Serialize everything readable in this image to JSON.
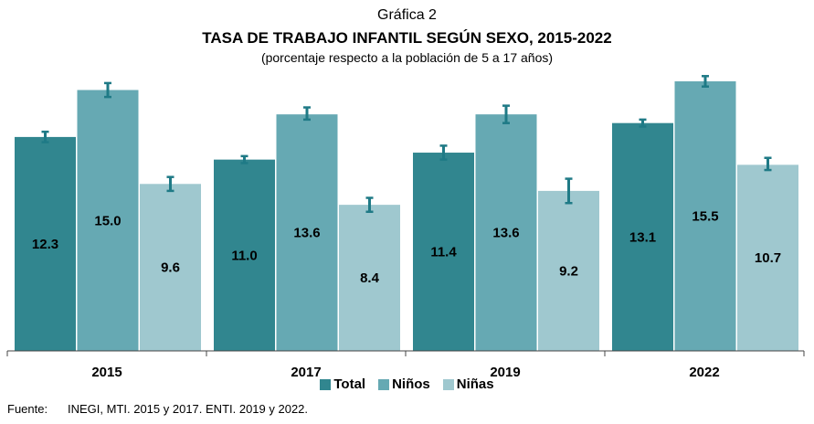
{
  "header": {
    "label": "Gráfica 2",
    "title": "TASA DE TRABAJO INFANTIL SEGÚN SEXO, 2015-2022",
    "subtitle": "(porcentaje respecto a la población de 5 a 17 años)"
  },
  "chart_data": {
    "type": "bar",
    "title": "TASA DE TRABAJO INFANTIL SEGÚN SEXO, 2015-2022",
    "categories": [
      "2015",
      "2017",
      "2019",
      "2022"
    ],
    "series": [
      {
        "name": "Total",
        "color": "#31868f",
        "values": [
          12.3,
          11.0,
          11.4,
          13.1
        ],
        "error_low": [
          12.0,
          10.8,
          11.0,
          12.9
        ],
        "error_high": [
          12.6,
          11.2,
          11.8,
          13.3
        ]
      },
      {
        "name": "Niños",
        "color": "#66a9b3",
        "values": [
          15.0,
          13.6,
          13.6,
          15.5
        ],
        "error_low": [
          14.6,
          13.3,
          13.1,
          15.2
        ],
        "error_high": [
          15.4,
          14.0,
          14.1,
          15.8
        ]
      },
      {
        "name": "Niñas",
        "color": "#9fc8cf",
        "values": [
          9.6,
          8.4,
          9.2,
          10.7
        ],
        "error_low": [
          9.2,
          8.0,
          8.5,
          10.4
        ],
        "error_high": [
          10.0,
          8.8,
          9.9,
          11.1
        ]
      }
    ],
    "error_bar_color": "#1f7a86",
    "ylim": [
      0,
      15.5
    ],
    "grid": false,
    "legend": "bottom-center"
  },
  "source": {
    "label": "Fuente:",
    "text": "INEGI, MTI. 2015 y 2017. ENTI. 2019 y 2022."
  }
}
